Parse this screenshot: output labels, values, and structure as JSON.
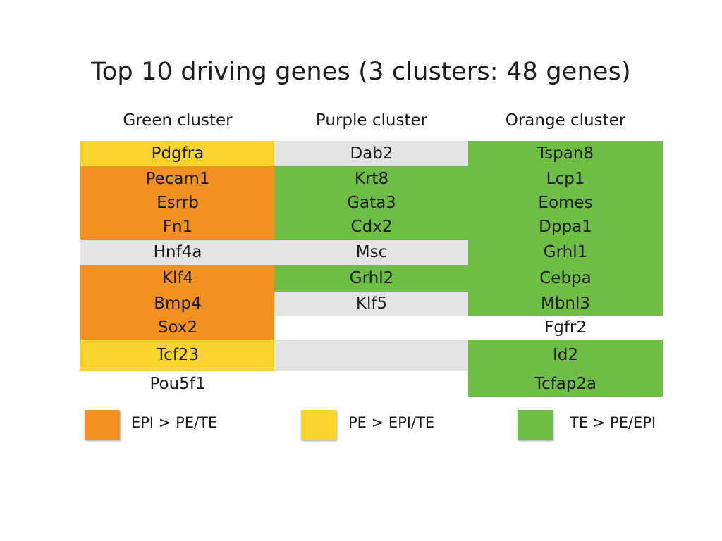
{
  "title": "Top 10 driving genes (3 clusters: 48 genes)",
  "colors": {
    "orange": "#F29120",
    "yellow": "#F6D32D",
    "green": "#6EBE45",
    "gray": "#E3E4E6",
    "white": "#FFFFFF"
  },
  "columns": [
    {
      "header": "Green cluster",
      "cells": [
        {
          "gene": "Pdgfra",
          "color": "yellow"
        },
        {
          "gene": "Pecam1",
          "color": "orange"
        },
        {
          "gene": "Esrrb",
          "color": "orange"
        },
        {
          "gene": "Fn1",
          "color": "orange"
        },
        {
          "gene": "Hnf4a",
          "color": "gray"
        },
        {
          "gene": "Klf4",
          "color": "orange"
        },
        {
          "gene": "Bmp4",
          "color": "orange"
        },
        {
          "gene": "Sox2",
          "color": "orange"
        },
        {
          "gene": "Tcf23",
          "color": "yellow"
        },
        {
          "gene": "Pou5f1",
          "color": "white"
        }
      ]
    },
    {
      "header": "Purple cluster",
      "cells": [
        {
          "gene": "Dab2",
          "color": "gray"
        },
        {
          "gene": "Krt8",
          "color": "green"
        },
        {
          "gene": "Gata3",
          "color": "green"
        },
        {
          "gene": "Cdx2",
          "color": "green"
        },
        {
          "gene": "Msc",
          "color": "gray"
        },
        {
          "gene": "Grhl2",
          "color": "green"
        },
        {
          "gene": "Klf5",
          "color": "gray"
        },
        {
          "gene": "",
          "color": "white"
        },
        {
          "gene": "",
          "color": "gray"
        },
        {
          "gene": "",
          "color": "white"
        }
      ]
    },
    {
      "header": "Orange cluster",
      "cells": [
        {
          "gene": "Tspan8",
          "color": "green"
        },
        {
          "gene": "Lcp1",
          "color": "green"
        },
        {
          "gene": "Eomes",
          "color": "green"
        },
        {
          "gene": "Dppa1",
          "color": "green"
        },
        {
          "gene": "Grhl1",
          "color": "green"
        },
        {
          "gene": "Cebpa",
          "color": "green"
        },
        {
          "gene": "Mbnl3",
          "color": "green"
        },
        {
          "gene": "Fgfr2",
          "color": "white"
        },
        {
          "gene": "Id2",
          "color": "green"
        },
        {
          "gene": "Tcfap2a",
          "color": "green"
        }
      ]
    }
  ],
  "legend": [
    {
      "label": "EPI > PE/TE",
      "color": "orange"
    },
    {
      "label": "PE > EPI/TE",
      "color": "yellow"
    },
    {
      "label": "TE > PE/EPI",
      "color": "green"
    }
  ]
}
